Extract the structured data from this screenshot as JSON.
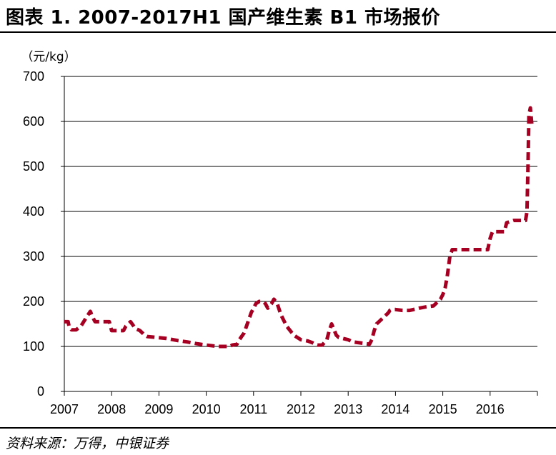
{
  "title": "图表 1. 2007-2017H1 国产维生素 B1 市场报价",
  "source": "资料来源：万得，中银证券",
  "chart_data": {
    "type": "line",
    "ylabel": "（元/kg）",
    "ylim": [
      0,
      700
    ],
    "yticks": [
      0,
      100,
      200,
      300,
      400,
      500,
      600,
      700
    ],
    "xlim": [
      2007,
      2017.0
    ],
    "xticks": [
      2007,
      2008,
      2009,
      2010,
      2011,
      2012,
      2013,
      2014,
      2015,
      2016
    ],
    "xtick_labels": [
      "2007",
      "2008",
      "2009",
      "2010",
      "2011",
      "2012",
      "2013",
      "2014",
      "2015",
      "2016"
    ],
    "grid": "horizontal",
    "line_color": "#A50021",
    "line_style": "dashed",
    "series": [
      {
        "x": [
          2007.0,
          2007.08,
          2007.1,
          2007.15,
          2007.25,
          2007.35,
          2007.5,
          2007.55,
          2007.6,
          2007.65,
          2007.75,
          2007.95,
          2008.0,
          2008.25,
          2008.3,
          2008.4,
          2008.5,
          2008.6,
          2008.7,
          2008.75,
          2008.95,
          2009.15,
          2009.4,
          2009.6,
          2009.8,
          2010.0,
          2010.25,
          2010.5,
          2010.55,
          2010.65,
          2010.7,
          2010.8,
          2010.95,
          2011.05,
          2011.12,
          2011.2,
          2011.25,
          2011.3,
          2011.38,
          2011.43,
          2011.5,
          2011.58,
          2011.7,
          2011.85,
          2012.0,
          2012.15,
          2012.25,
          2012.35,
          2012.45,
          2012.55,
          2012.6,
          2012.65,
          2012.75,
          2012.8,
          2013.0,
          2013.1,
          2013.25,
          2013.45,
          2013.5,
          2013.55,
          2013.6,
          2013.65,
          2013.75,
          2013.85,
          2013.88,
          2013.92,
          2014.0,
          2014.15,
          2014.3,
          2014.5,
          2014.65,
          2014.8,
          2014.9,
          2014.95,
          2015.0,
          2015.05,
          2015.1,
          2015.15,
          2015.2,
          2015.3,
          2015.5,
          2015.65,
          2015.75,
          2015.95,
          2016.0,
          2016.05,
          2016.1,
          2016.15,
          2016.3,
          2016.35,
          2016.5,
          2016.7,
          2016.75,
          2016.78,
          2016.8,
          2016.82,
          2016.85,
          2016.88
        ],
        "y": [
          155,
          155,
          145,
          137,
          137,
          145,
          170,
          178,
          165,
          155,
          155,
          155,
          135,
          135,
          145,
          155,
          140,
          135,
          125,
          122,
          120,
          118,
          113,
          110,
          106,
          103,
          100,
          100,
          103,
          105,
          115,
          130,
          175,
          195,
          200,
          200,
          195,
          185,
          195,
          205,
          195,
          170,
          145,
          125,
          115,
          112,
          108,
          103,
          103,
          115,
          135,
          150,
          125,
          120,
          115,
          110,
          108,
          105,
          115,
          135,
          150,
          155,
          165,
          175,
          180,
          182,
          182,
          180,
          180,
          185,
          188,
          190,
          200,
          205,
          215,
          230,
          260,
          300,
          315,
          315,
          315,
          315,
          315,
          315,
          340,
          355,
          355,
          355,
          355,
          375,
          380,
          380,
          380,
          400,
          500,
          615,
          630,
          595
        ]
      }
    ]
  }
}
